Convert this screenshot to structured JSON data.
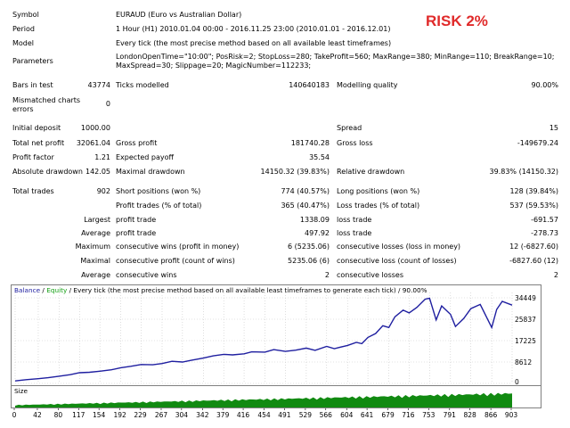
{
  "risk_label": "RISK 2%",
  "report": {
    "symbol": {
      "label": "Symbol",
      "value": "EURAUD (Euro vs Australian Dollar)"
    },
    "period": {
      "label": "Period",
      "value": "1 Hour (H1) 2010.01.04 00:00 - 2016.11.25 23:00 (2010.01.01 - 2016.12.01)"
    },
    "model": {
      "label": "Model",
      "value": "Every tick (the most precise method based on all available least timeframes)"
    },
    "parameters": {
      "label": "Parameters",
      "line1": "LondonOpenTime=\"10:00\"; PosRisk=2; StopLoss=280; TakeProfit=560; MaxRange=380; MinRange=110; BreakRange=10;",
      "line2": "MaxSpread=30; Slippage=20; MagicNumber=112233;"
    },
    "bars": {
      "label": "Bars in test",
      "value": "43774",
      "ticks_label": "Ticks modelled",
      "ticks_value": "140640183",
      "quality_label": "Modelling quality",
      "quality_value": "90.00%"
    },
    "mismatched": {
      "label1": "Mismatched charts",
      "label2": "errors",
      "value": "0"
    },
    "initial_deposit": {
      "label": "Initial deposit",
      "value": "1000.00",
      "spread_label": "Spread",
      "spread_value": "15"
    },
    "net_profit": {
      "label": "Total net profit",
      "value": "32061.04",
      "gross_profit_label": "Gross profit",
      "gross_profit_value": "181740.28",
      "gross_loss_label": "Gross loss",
      "gross_loss_value": "-149679.24"
    },
    "profit_factor": {
      "label": "Profit factor",
      "value": "1.21",
      "payoff_label": "Expected payoff",
      "payoff_value": "35.54"
    },
    "abs_drawdown": {
      "label": "Absolute drawdown",
      "value": "142.05",
      "max_dd_label": "Maximal drawdown",
      "max_dd_value": "14150.32 (39.83%)",
      "rel_dd_label": "Relative drawdown",
      "rel_dd_value": "39.83% (14150.32)"
    },
    "total_trades": {
      "label": "Total trades",
      "value": "902",
      "short_label": "Short positions (won %)",
      "short_value": "774 (40.57%)",
      "long_label": "Long positions (won %)",
      "long_value": "128 (39.84%)"
    },
    "profit_trades": {
      "label": "Profit trades (% of total)",
      "value": "365 (40.47%)",
      "loss_label": "Loss trades (% of total)",
      "loss_value": "537 (59.53%)"
    },
    "largest": {
      "prefix": "Largest",
      "profit_label": "profit trade",
      "profit_value": "1338.09",
      "loss_label": "loss trade",
      "loss_value": "-691.57"
    },
    "average": {
      "prefix": "Average",
      "profit_label": "profit trade",
      "profit_value": "497.92",
      "loss_label": "loss trade",
      "loss_value": "-278.73"
    },
    "maximum": {
      "prefix": "Maximum",
      "wins_label": "consecutive wins (profit in money)",
      "wins_value": "6 (5235.06)",
      "losses_label": "consecutive losses (loss in money)",
      "losses_value": "12 (-6827.60)"
    },
    "maximal": {
      "prefix": "Maximal",
      "profit_label": "consecutive profit (count of wins)",
      "profit_value": "5235.06 (6)",
      "loss_label": "consecutive loss (count of losses)",
      "loss_value": "-6827.60 (12)"
    },
    "average_consec": {
      "prefix": "Average",
      "wins_label": "consecutive wins",
      "wins_value": "2",
      "losses_label": "consecutive losses",
      "losses_value": "2"
    }
  },
  "chart": {
    "legend_balance": "Balance",
    "legend_sep": " / ",
    "legend_equity": "Equity",
    "legend_rest": " / Every tick (the most precise method based on all available least timeframes to generate each tick) / 90.00%",
    "volume_label": "Size",
    "colors": {
      "balance": "#1f1fa0",
      "equity": "#14a014",
      "volume": "#118a11"
    }
  },
  "chart_data": {
    "type": "line",
    "y_ticks": [
      "34449",
      "25837",
      "17225",
      "8612",
      "0"
    ],
    "x_ticks": [
      "0",
      "42",
      "80",
      "117",
      "154",
      "192",
      "229",
      "267",
      "304",
      "342",
      "379",
      "416",
      "454",
      "491",
      "529",
      "566",
      "604",
      "641",
      "679",
      "716",
      "753",
      "791",
      "828",
      "866",
      "903"
    ],
    "ylim": [
      0,
      34449
    ],
    "xlim": [
      0,
      903
    ],
    "series": [
      {
        "name": "Balance",
        "x": [
          0,
          20,
          42,
          60,
          80,
          100,
          117,
          135,
          154,
          175,
          192,
          210,
          229,
          250,
          267,
          285,
          304,
          320,
          342,
          360,
          379,
          395,
          416,
          430,
          454,
          470,
          491,
          510,
          529,
          545,
          566,
          580,
          604,
          620,
          630,
          641,
          655,
          668,
          679,
          690,
          705,
          716,
          730,
          745,
          753,
          765,
          775,
          791,
          800,
          815,
          828,
          845,
          866,
          875,
          885,
          903
        ],
        "y": [
          1000,
          1500,
          1900,
          2300,
          2900,
          3500,
          4300,
          4500,
          4900,
          5500,
          6300,
          6900,
          7600,
          7500,
          8000,
          8900,
          8600,
          9300,
          10200,
          11100,
          11700,
          11500,
          11900,
          12700,
          12600,
          13600,
          12900,
          13400,
          14200,
          13300,
          14900,
          14000,
          15300,
          16500,
          16000,
          18500,
          20100,
          23200,
          22500,
          26800,
          29500,
          28400,
          30600,
          33900,
          34300,
          25600,
          31200,
          27800,
          22900,
          26100,
          30100,
          31800,
          22500,
          29800,
          33000,
          31500
        ]
      }
    ]
  }
}
